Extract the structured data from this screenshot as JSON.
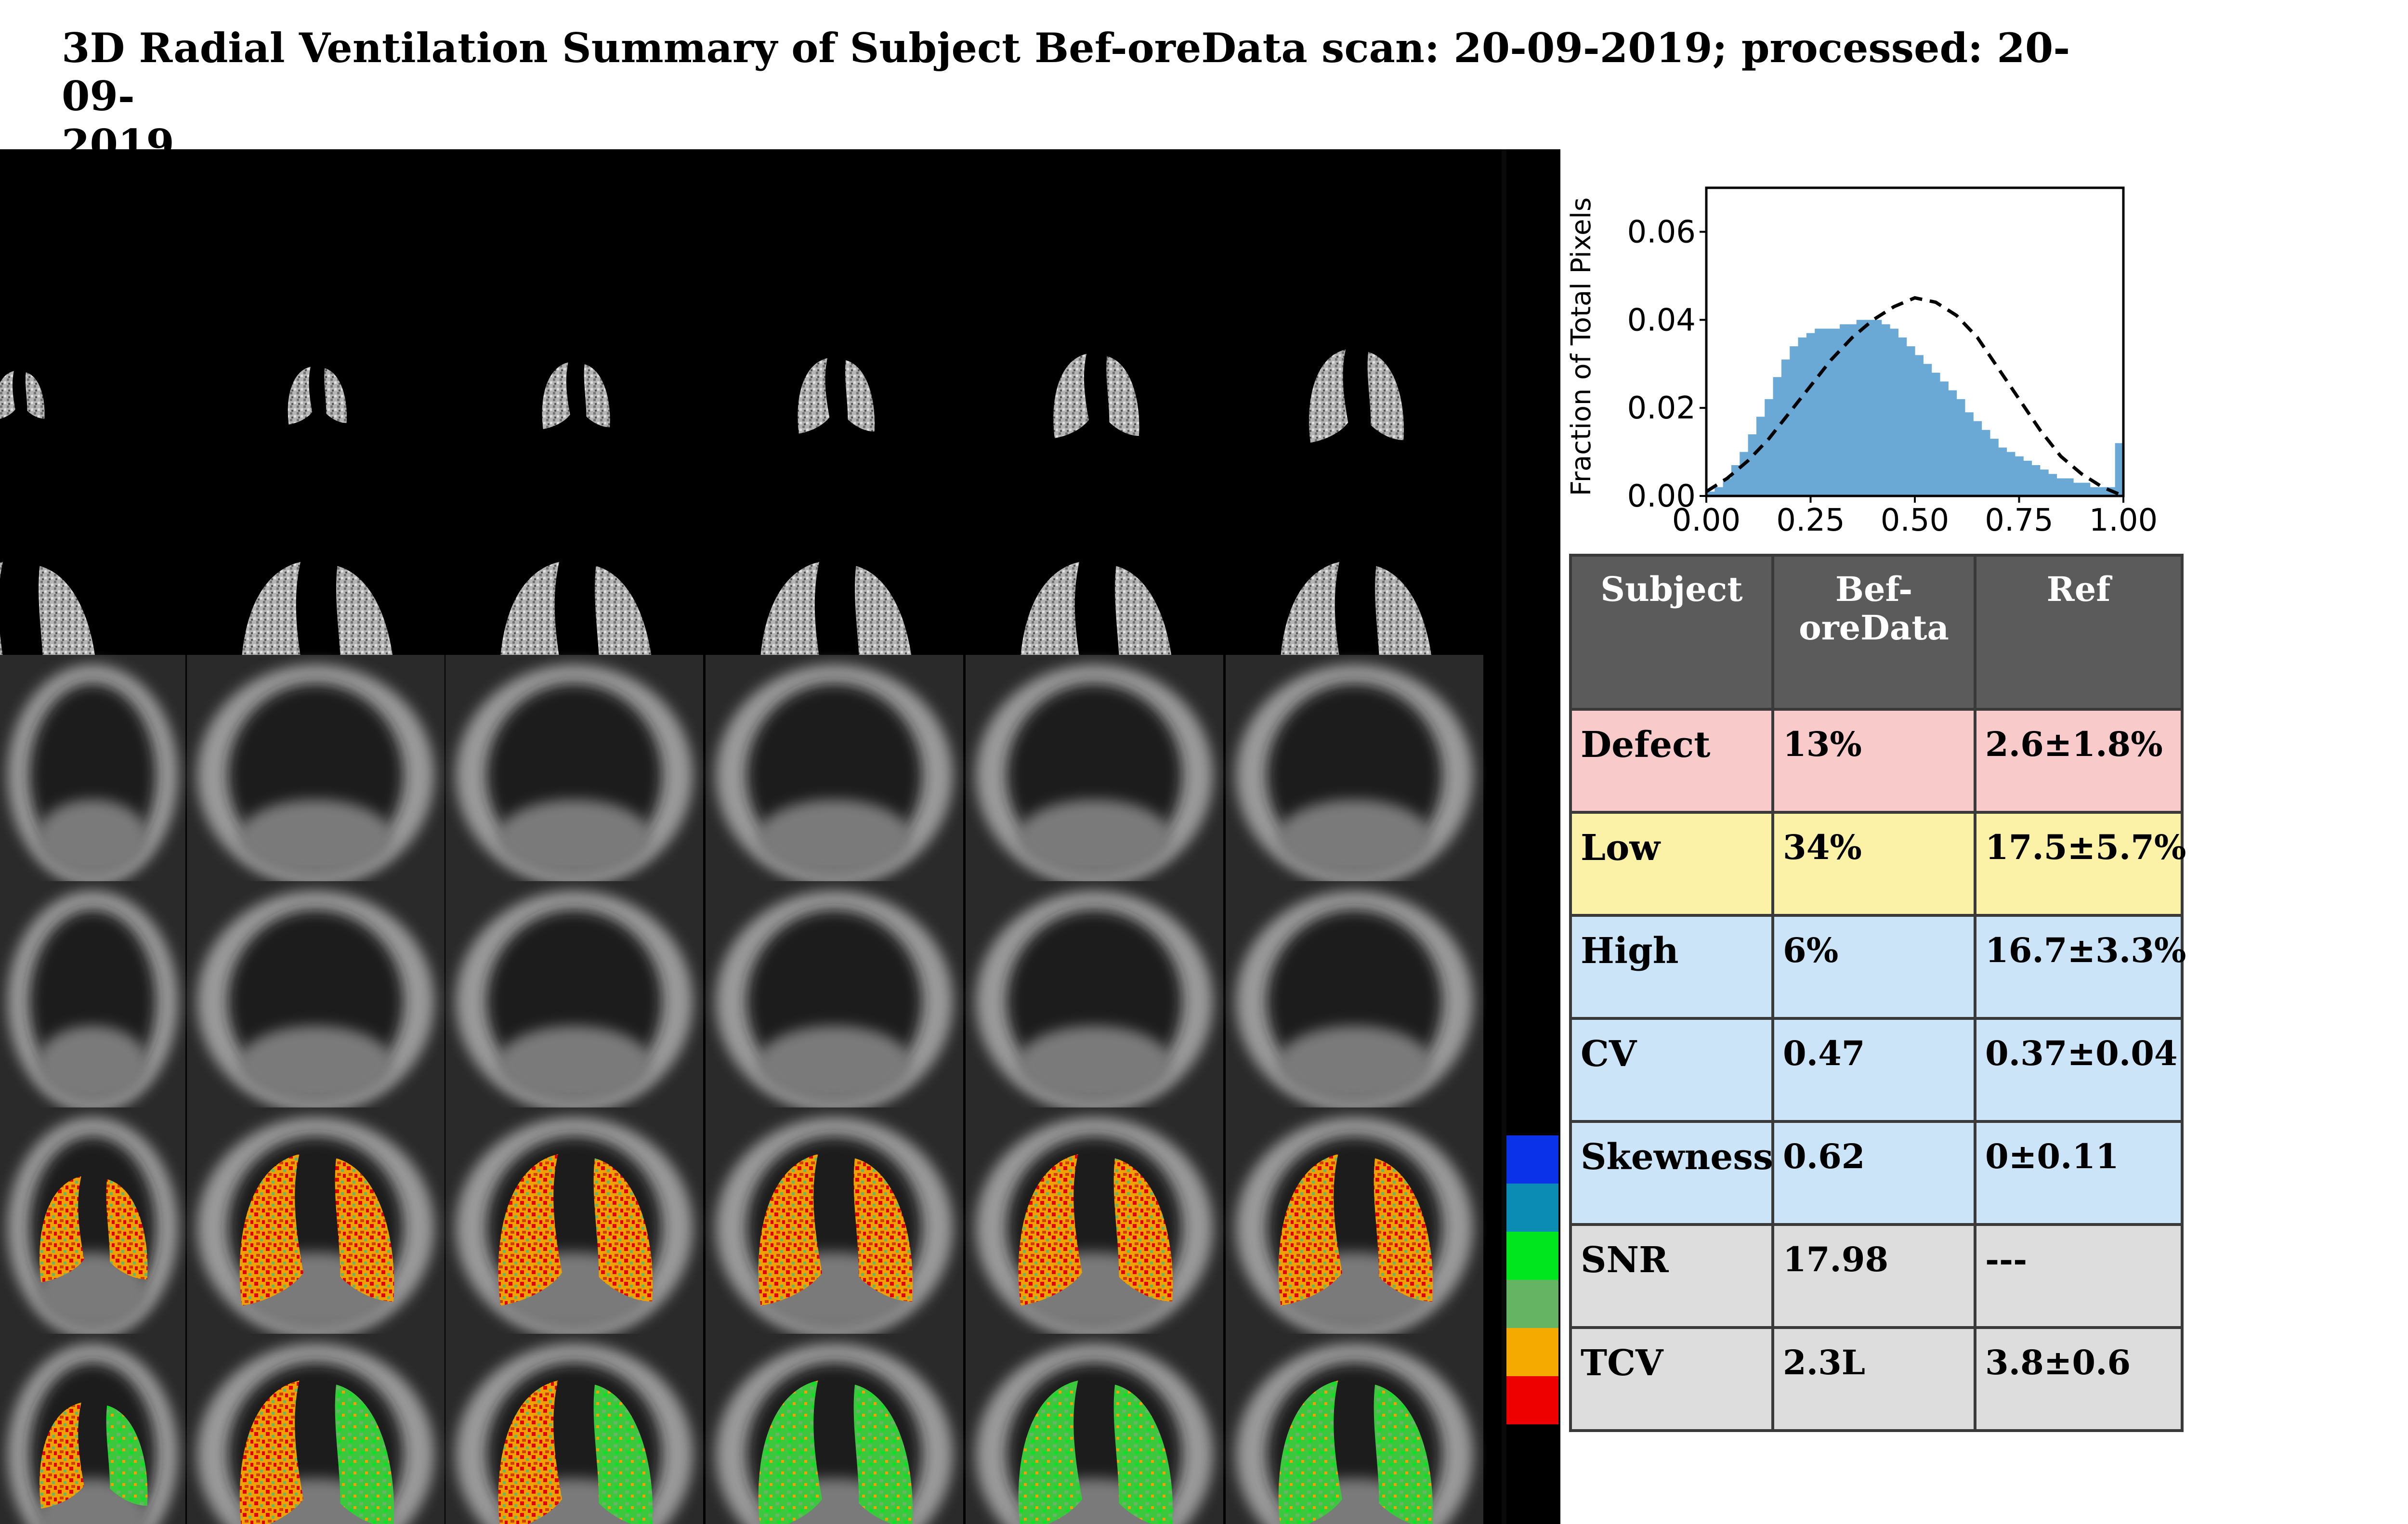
{
  "title": "3D Radial Ventilation Summary of Subject Bef-oreData   scan: 20-09-2019; processed: 20-09-\n2019",
  "chart_data": {
    "type": "bar",
    "ylabel": "Fraction of Total Pixels",
    "xlabel": "",
    "xlim": [
      0.0,
      1.0
    ],
    "ylim": [
      0.0,
      0.07
    ],
    "xticks": [
      "0.00",
      "0.25",
      "0.50",
      "0.75",
      "1.00"
    ],
    "yticks": [
      "0.00",
      "0.02",
      "0.04",
      "0.06"
    ],
    "bar_color": "#6aa8d6",
    "curve_color": "#000000",
    "bin_width": 0.02,
    "histogram": {
      "x": [
        0.01,
        0.03,
        0.05,
        0.07,
        0.09,
        0.11,
        0.13,
        0.15,
        0.17,
        0.19,
        0.21,
        0.23,
        0.25,
        0.27,
        0.29,
        0.31,
        0.33,
        0.35,
        0.37,
        0.39,
        0.41,
        0.43,
        0.45,
        0.47,
        0.49,
        0.51,
        0.53,
        0.55,
        0.57,
        0.59,
        0.61,
        0.63,
        0.65,
        0.67,
        0.69,
        0.71,
        0.73,
        0.75,
        0.77,
        0.79,
        0.81,
        0.83,
        0.85,
        0.87,
        0.89,
        0.91,
        0.93,
        0.95,
        0.97,
        0.99
      ],
      "y": [
        0.001,
        0.002,
        0.004,
        0.007,
        0.01,
        0.014,
        0.018,
        0.022,
        0.027,
        0.031,
        0.034,
        0.036,
        0.037,
        0.038,
        0.038,
        0.038,
        0.039,
        0.039,
        0.04,
        0.04,
        0.04,
        0.039,
        0.038,
        0.036,
        0.034,
        0.032,
        0.03,
        0.028,
        0.026,
        0.024,
        0.022,
        0.019,
        0.017,
        0.015,
        0.013,
        0.011,
        0.01,
        0.009,
        0.008,
        0.007,
        0.006,
        0.005,
        0.004,
        0.004,
        0.003,
        0.003,
        0.002,
        0.002,
        0.002,
        0.012
      ]
    },
    "reference_curve": {
      "x": [
        0.0,
        0.05,
        0.1,
        0.15,
        0.2,
        0.25,
        0.3,
        0.35,
        0.4,
        0.45,
        0.5,
        0.55,
        0.6,
        0.65,
        0.7,
        0.75,
        0.8,
        0.85,
        0.9,
        0.95,
        1.0
      ],
      "y": [
        0.001,
        0.004,
        0.008,
        0.013,
        0.019,
        0.025,
        0.031,
        0.036,
        0.04,
        0.043,
        0.045,
        0.044,
        0.041,
        0.036,
        0.029,
        0.022,
        0.015,
        0.009,
        0.005,
        0.002,
        0.0
      ]
    }
  },
  "table": {
    "headers": [
      "Subject",
      "Bef-\noreData",
      "Ref"
    ],
    "rows": [
      {
        "label": "Defect",
        "value": "13%",
        "ref": "2.6±1.8%",
        "color": "#f8caca"
      },
      {
        "label": "Low",
        "value": "34%",
        "ref": "17.5±5.7%",
        "color": "#fbf2a8"
      },
      {
        "label": "High",
        "value": "6%",
        "ref": "16.7±3.3%",
        "color": "#cce4f7"
      },
      {
        "label": "CV",
        "value": "0.47",
        "ref": "0.37±0.04",
        "color": "#cce4f7"
      },
      {
        "label": "Skewness",
        "value": "0.62",
        "ref": "0±0.11",
        "color": "#cce4f7"
      },
      {
        "label": "SNR",
        "value": "17.98",
        "ref": "---",
        "color": "#dddddd"
      },
      {
        "label": "TCV",
        "value": "2.3L",
        "ref": "3.8±0.6",
        "color": "#dddddd"
      }
    ]
  },
  "colorbar": [
    "#0a32e8",
    "#0a8cb4",
    "#00e61e",
    "#64b464",
    "#f5aa00",
    "#ee0000"
  ]
}
